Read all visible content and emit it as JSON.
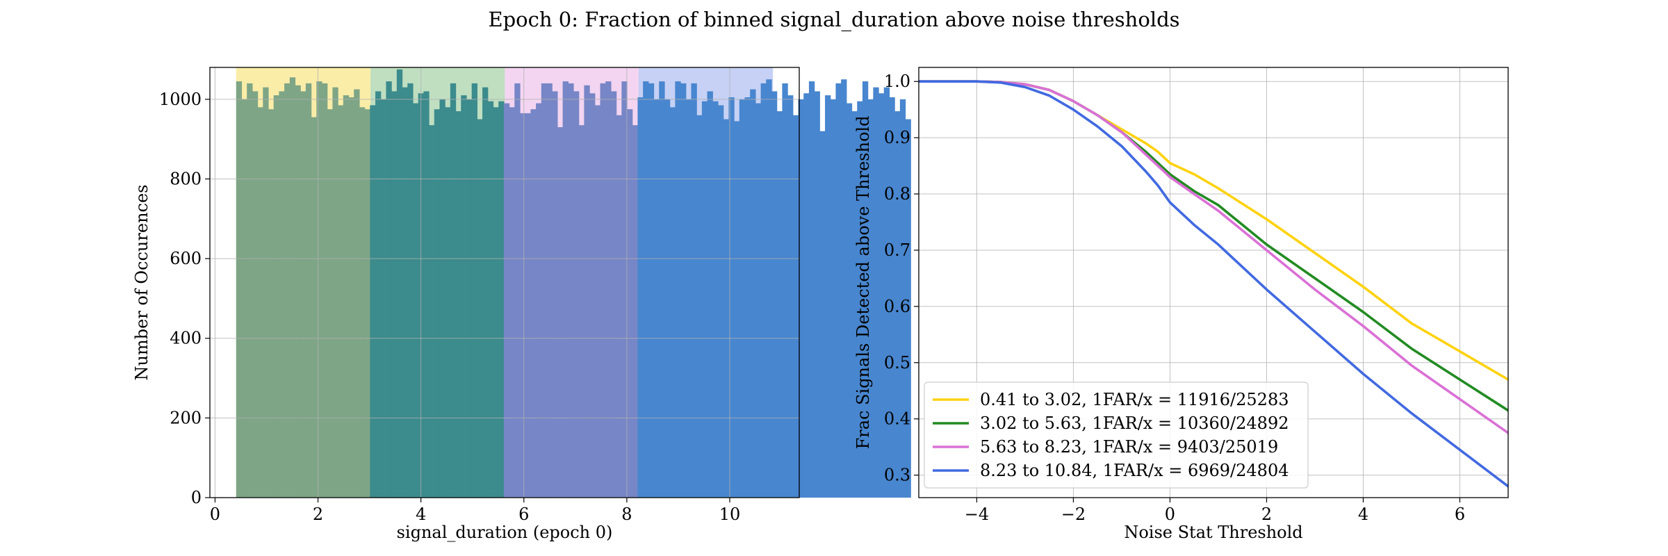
{
  "figure": {
    "title": "Epoch 0: Fraction of binned signal_duration above noise thresholds"
  },
  "chart_data": [
    {
      "type": "bar",
      "title": "",
      "xlabel": "signal_duration (epoch 0)",
      "ylabel": "Number of Occurences",
      "xlim": [
        -0.1,
        11.35
      ],
      "ylim": [
        0,
        1080
      ],
      "xticks": [
        0,
        2,
        4,
        6,
        8,
        10
      ],
      "yticks": [
        0,
        200,
        400,
        600,
        800,
        1000
      ],
      "grid": true,
      "bin_start": 0.41,
      "bin_width": 0.104,
      "bin_counts": [
        1045,
        1000,
        1040,
        1020,
        980,
        1030,
        975,
        1010,
        1020,
        1040,
        1055,
        1035,
        1020,
        1040,
        955,
        1045,
        1040,
        975,
        1030,
        985,
        1010,
        1005,
        1025,
        980,
        975,
        985,
        1020,
        1000,
        1045,
        1020,
        1075,
        1030,
        1040,
        990,
        1015,
        1020,
        935,
        975,
        1000,
        980,
        1040,
        970,
        1010,
        1000,
        1040,
        950,
        1030,
        995,
        980,
        995,
        990,
        980,
        1040,
        965,
        965,
        975,
        990,
        1040,
        1040,
        1020,
        930,
        1045,
        1040,
        1020,
        935,
        1035,
        1015,
        985,
        1040,
        1045,
        1020,
        960,
        1045,
        975,
        935,
        1005,
        1045,
        1040,
        1000,
        1045,
        1000,
        980,
        1045,
        1040,
        1000,
        1040,
        960,
        995,
        1020,
        995,
        985,
        950,
        1005,
        945,
        1000,
        1005,
        1025,
        990,
        1040,
        1050,
        1020,
        970,
        1040,
        1010,
        960,
        1000,
        1015,
        1045,
        1020,
        920,
        1010,
        1000,
        1040,
        1050,
        990,
        970,
        995,
        1045,
        1000,
        1030,
        1015,
        1030,
        1005,
        970,
        1000,
        950
      ],
      "bands": [
        {
          "range": [
            0.41,
            3.02
          ],
          "span_color": "#f5dc52",
          "bar_color": "#7ea586"
        },
        {
          "range": [
            3.02,
            5.63
          ],
          "span_color": "#82c083",
          "bar_color": "#3c8b8d"
        },
        {
          "range": [
            5.63,
            8.23
          ],
          "span_color": "#e8abe4",
          "bar_color": "#7786c6"
        },
        {
          "range": [
            8.23,
            10.84
          ],
          "span_color": "#8da4ec",
          "bar_color": "#4886cf"
        }
      ]
    },
    {
      "type": "line",
      "title": "",
      "xlabel": "Noise Stat Threshold",
      "ylabel": "Frac Signals Detected above Threshold",
      "xlim": [
        -5.2,
        7.0
      ],
      "ylim": [
        0.26,
        1.025
      ],
      "xticks": [
        -4,
        -2,
        0,
        2,
        4,
        6
      ],
      "xtick_labels": [
        "−4",
        "−2",
        "0",
        "2",
        "4",
        "6"
      ],
      "yticks": [
        0.3,
        0.4,
        0.5,
        0.6,
        0.7,
        0.8,
        0.9,
        1.0
      ],
      "ytick_labels": [
        "0.3",
        "0.4",
        "0.5",
        "0.6",
        "0.7",
        "0.8",
        "0.9",
        "1.0"
      ],
      "grid": true,
      "legend_position": "lower-left",
      "series": [
        {
          "name": "0.41 to 3.02, 1FAR/x = 11916/25283",
          "color": "#ffd20f",
          "x": [
            -5.2,
            -4,
            -3.5,
            -3,
            -2.5,
            -2,
            -1.5,
            -1,
            -0.5,
            -0.25,
            0,
            0.5,
            1,
            2,
            3,
            4,
            5,
            6,
            7
          ],
          "y": [
            1.0,
            1.0,
            0.999,
            0.995,
            0.985,
            0.965,
            0.94,
            0.915,
            0.89,
            0.875,
            0.855,
            0.835,
            0.81,
            0.755,
            0.695,
            0.635,
            0.57,
            0.52,
            0.47
          ]
        },
        {
          "name": "3.02 to 5.63, 1FAR/x = 10360/24892",
          "color": "#228b22",
          "x": [
            -5.2,
            -4,
            -3.5,
            -3,
            -2.5,
            -2,
            -1.5,
            -1,
            -0.5,
            -0.25,
            0,
            0.5,
            1,
            2,
            3,
            4,
            5,
            6,
            7
          ],
          "y": [
            1.0,
            1.0,
            0.999,
            0.995,
            0.985,
            0.965,
            0.94,
            0.91,
            0.875,
            0.855,
            0.835,
            0.805,
            0.78,
            0.71,
            0.65,
            0.59,
            0.525,
            0.47,
            0.415
          ]
        },
        {
          "name": "5.63 to 8.23, 1FAR/x = 9403/25019",
          "color": "#da70d6",
          "x": [
            -5.2,
            -4,
            -3.5,
            -3,
            -2.5,
            -2,
            -1.5,
            -1,
            -0.5,
            -0.25,
            0,
            0.5,
            1,
            2,
            3,
            4,
            5,
            6,
            7
          ],
          "y": [
            1.0,
            1.0,
            0.999,
            0.995,
            0.985,
            0.965,
            0.94,
            0.91,
            0.87,
            0.85,
            0.83,
            0.8,
            0.77,
            0.7,
            0.63,
            0.565,
            0.495,
            0.435,
            0.375
          ]
        },
        {
          "name": "8.23 to 10.84, 1FAR/x = 6969/24804",
          "color": "#4169e1",
          "x": [
            -5.2,
            -4,
            -3.5,
            -3,
            -2.5,
            -2,
            -1.5,
            -1,
            -0.5,
            -0.25,
            0,
            0.5,
            1,
            2,
            3,
            4,
            5,
            6,
            7
          ],
          "y": [
            1.0,
            1.0,
            0.998,
            0.99,
            0.975,
            0.95,
            0.92,
            0.885,
            0.84,
            0.815,
            0.785,
            0.745,
            0.71,
            0.63,
            0.555,
            0.48,
            0.41,
            0.345,
            0.28
          ]
        }
      ]
    }
  ]
}
